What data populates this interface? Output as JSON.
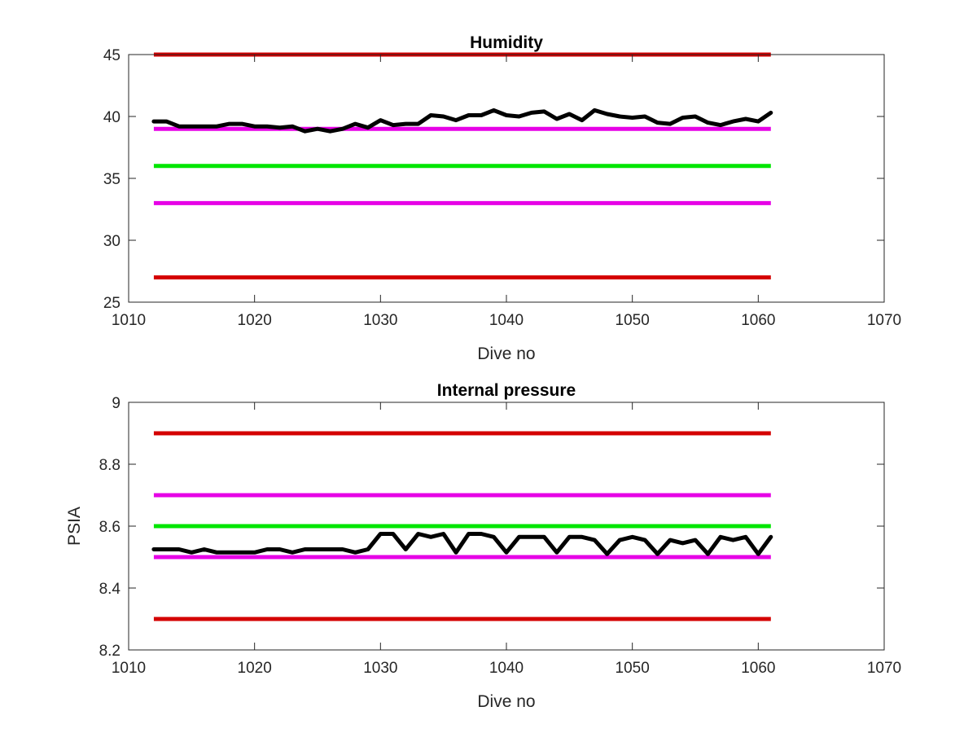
{
  "chart_data": [
    {
      "type": "line",
      "title": "Humidity",
      "xlabel": "Dive no",
      "ylabel": "",
      "xlim": [
        1010,
        1070
      ],
      "ylim": [
        25,
        45
      ],
      "xticks": [
        1010,
        1020,
        1030,
        1040,
        1050,
        1060,
        1070
      ],
      "yticks": [
        25,
        30,
        35,
        40,
        45
      ],
      "xtick_labels": [
        "1010",
        "1020",
        "1030",
        "1040",
        "1050",
        "1060",
        "1070"
      ],
      "ytick_labels": [
        "25",
        "30",
        "35",
        "40",
        "45"
      ],
      "grid": false,
      "reference_lines": [
        {
          "y": 45,
          "x_range": [
            1012,
            1061
          ],
          "color": "#d40000"
        },
        {
          "y": 39,
          "x_range": [
            1012,
            1061
          ],
          "color": "#e600e6"
        },
        {
          "y": 36,
          "x_range": [
            1012,
            1061
          ],
          "color": "#00e600"
        },
        {
          "y": 33,
          "x_range": [
            1012,
            1061
          ],
          "color": "#e600e6"
        },
        {
          "y": 27,
          "x_range": [
            1012,
            1061
          ],
          "color": "#d40000"
        }
      ],
      "series": [
        {
          "color": "#000000",
          "x": [
            1012,
            1013,
            1014,
            1015,
            1016,
            1017,
            1018,
            1019,
            1020,
            1021,
            1022,
            1023,
            1024,
            1025,
            1026,
            1027,
            1028,
            1029,
            1030,
            1031,
            1032,
            1033,
            1034,
            1035,
            1036,
            1037,
            1038,
            1039,
            1040,
            1041,
            1042,
            1043,
            1044,
            1045,
            1046,
            1047,
            1048,
            1049,
            1050,
            1051,
            1052,
            1053,
            1054,
            1055,
            1056,
            1057,
            1058,
            1059,
            1060,
            1061
          ],
          "y": [
            39.6,
            39.6,
            39.2,
            39.2,
            39.2,
            39.2,
            39.4,
            39.4,
            39.2,
            39.2,
            39.1,
            39.2,
            38.8,
            39.0,
            38.8,
            39.0,
            39.4,
            39.1,
            39.7,
            39.3,
            39.4,
            39.4,
            40.1,
            40.0,
            39.7,
            40.1,
            40.1,
            40.5,
            40.1,
            40.0,
            40.3,
            40.4,
            39.8,
            40.2,
            39.7,
            40.5,
            40.2,
            40.0,
            39.9,
            40.0,
            39.5,
            39.4,
            39.9,
            40.0,
            39.5,
            39.3,
            39.6,
            39.8,
            39.6,
            40.3
          ]
        }
      ]
    },
    {
      "type": "line",
      "title": "Internal pressure",
      "xlabel": "Dive no",
      "ylabel": "PSIA",
      "xlim": [
        1010,
        1070
      ],
      "ylim": [
        8.2,
        9.0
      ],
      "xticks": [
        1010,
        1020,
        1030,
        1040,
        1050,
        1060,
        1070
      ],
      "yticks": [
        8.2,
        8.4,
        8.6,
        8.8,
        9.0
      ],
      "xtick_labels": [
        "1010",
        "1020",
        "1030",
        "1040",
        "1050",
        "1060",
        "1070"
      ],
      "ytick_labels": [
        "8.2",
        "8.4",
        "8.6",
        "8.8",
        "9"
      ],
      "grid": false,
      "reference_lines": [
        {
          "y": 8.9,
          "x_range": [
            1012,
            1061
          ],
          "color": "#d40000"
        },
        {
          "y": 8.7,
          "x_range": [
            1012,
            1061
          ],
          "color": "#e600e6"
        },
        {
          "y": 8.6,
          "x_range": [
            1012,
            1061
          ],
          "color": "#00e600"
        },
        {
          "y": 8.5,
          "x_range": [
            1012,
            1061
          ],
          "color": "#e600e6"
        },
        {
          "y": 8.3,
          "x_range": [
            1012,
            1061
          ],
          "color": "#d40000"
        }
      ],
      "series": [
        {
          "color": "#000000",
          "x": [
            1012,
            1013,
            1014,
            1015,
            1016,
            1017,
            1018,
            1019,
            1020,
            1021,
            1022,
            1023,
            1024,
            1025,
            1026,
            1027,
            1028,
            1029,
            1030,
            1031,
            1032,
            1033,
            1034,
            1035,
            1036,
            1037,
            1038,
            1039,
            1040,
            1041,
            1042,
            1043,
            1044,
            1045,
            1046,
            1047,
            1048,
            1049,
            1050,
            1051,
            1052,
            1053,
            1054,
            1055,
            1056,
            1057,
            1058,
            1059,
            1060,
            1061
          ],
          "y": [
            8.525,
            8.525,
            8.525,
            8.515,
            8.525,
            8.515,
            8.515,
            8.515,
            8.515,
            8.525,
            8.525,
            8.515,
            8.525,
            8.525,
            8.525,
            8.525,
            8.515,
            8.525,
            8.575,
            8.575,
            8.525,
            8.575,
            8.565,
            8.575,
            8.515,
            8.575,
            8.575,
            8.565,
            8.515,
            8.565,
            8.565,
            8.565,
            8.515,
            8.565,
            8.565,
            8.555,
            8.51,
            8.555,
            8.565,
            8.555,
            8.51,
            8.555,
            8.545,
            8.555,
            8.51,
            8.565,
            8.555,
            8.565,
            8.51,
            8.565
          ]
        }
      ]
    }
  ]
}
